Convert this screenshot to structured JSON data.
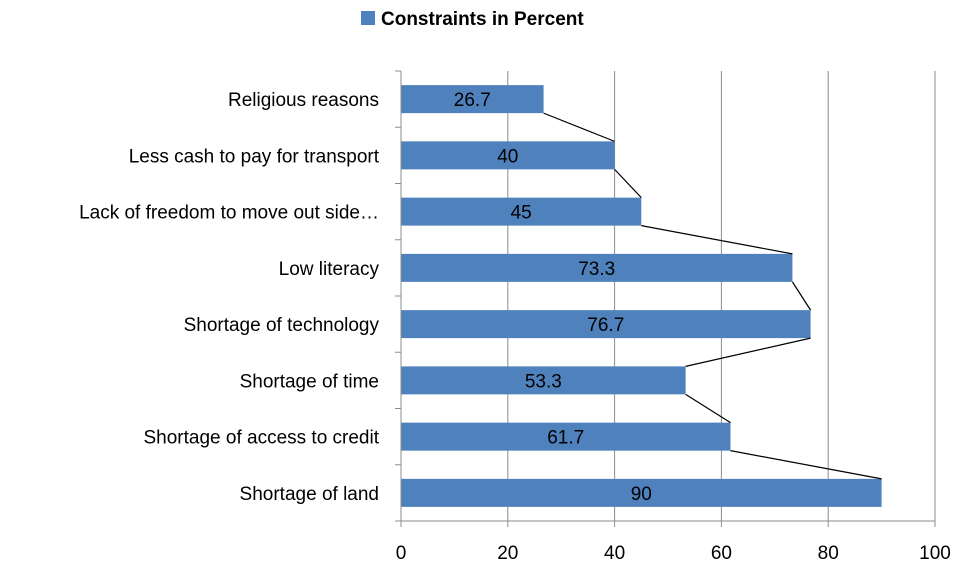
{
  "chart_data": {
    "type": "bar",
    "orientation": "horizontal",
    "categories": [
      "Religious reasons",
      "Less cash to pay for transport",
      "Lack of freedom to move out side…",
      "Low  literacy",
      "Shortage of technology",
      "Shortage of time",
      "Shortage of access to credit",
      "Shortage of  land"
    ],
    "series": [
      {
        "name": "Constraints in Percent",
        "values": [
          26.7,
          40,
          45,
          73.3,
          76.7,
          53.3,
          61.7,
          90
        ],
        "data_labels": [
          "26.7",
          "40",
          "45",
          "73.3",
          "76.7",
          "53.3",
          "61.7",
          "90"
        ],
        "color": "#4f81bd"
      }
    ],
    "xlim": [
      0,
      100
    ],
    "x_ticks": [
      "0",
      "20",
      "40",
      "60",
      "80",
      "100"
    ],
    "grid": true,
    "gridline_axis": "x",
    "legend": {
      "position": "top-center",
      "entries": [
        "Constraints in Percent"
      ]
    },
    "connector_lines": true,
    "title": "",
    "xlabel": "",
    "ylabel": ""
  }
}
